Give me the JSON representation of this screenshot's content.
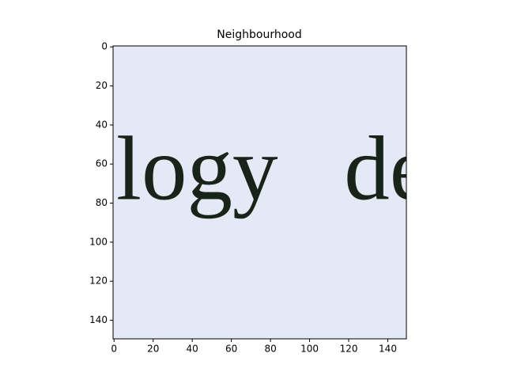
{
  "chart_data": {
    "type": "image",
    "title": "Neighbourhood",
    "image_text": "logy de",
    "xlim": [
      -0.5,
      149.5
    ],
    "ylim": [
      149.5,
      -0.5
    ],
    "xticks": [
      0,
      20,
      40,
      60,
      80,
      100,
      120,
      140
    ],
    "yticks": [
      0,
      20,
      40,
      60,
      80,
      100,
      120,
      140
    ],
    "background": "#e4e9f5",
    "ink": "#18231a"
  }
}
